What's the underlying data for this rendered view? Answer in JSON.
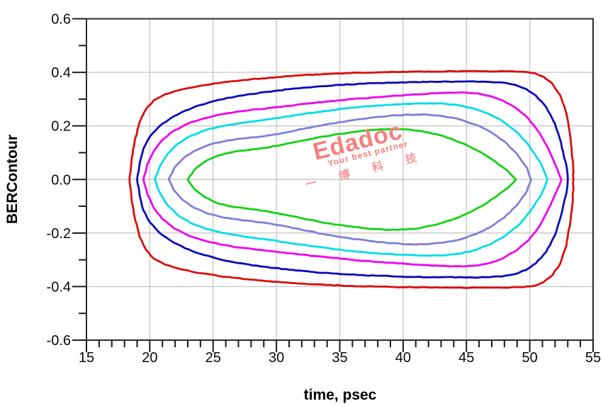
{
  "chart_data": {
    "type": "contour",
    "title": "",
    "xlabel": "time, psec",
    "ylabel": "BERContour",
    "xlim": [
      15,
      55
    ],
    "ylim": [
      -0.6,
      0.6
    ],
    "x_ticks": [
      15,
      20,
      25,
      30,
      35,
      40,
      45,
      50,
      55
    ],
    "x_tick_labels": [
      "15",
      "20",
      "25",
      "30",
      "35",
      "40",
      "45",
      "50",
      "55"
    ],
    "x_minor_tick_step": 1,
    "y_ticks": [
      0.6,
      0.4,
      0.2,
      0.0,
      -0.2,
      -0.4,
      -0.6
    ],
    "y_tick_labels": [
      "0.6",
      "0.4",
      "0.2",
      "0.0",
      "-0.2",
      "-0.4",
      "-0.6"
    ],
    "y_minor_ticks": [
      0.5,
      0.3,
      0.1,
      -0.1,
      -0.3,
      -0.5
    ],
    "grid": "major gridlines, light gray, full box border",
    "legend_position": "none",
    "series_note": "Nested BER eye-contour loops, symmetric about y=0; upper_points give the top half (time psec, BERContour); lower half mirrors with negated y",
    "series": [
      {
        "name": "contour-1-outermost",
        "color": "#dc0d0d",
        "symmetric_about_y0": true,
        "upper_points": [
          [
            18.4,
            0
          ],
          [
            18.55,
            0.07
          ],
          [
            18.8,
            0.14
          ],
          [
            19.2,
            0.215
          ],
          [
            19.7,
            0.262
          ],
          [
            20.3,
            0.295
          ],
          [
            21.2,
            0.318
          ],
          [
            22.5,
            0.336
          ],
          [
            24,
            0.35
          ],
          [
            26,
            0.364
          ],
          [
            28,
            0.374
          ],
          [
            30,
            0.382
          ],
          [
            32,
            0.389
          ],
          [
            34,
            0.394
          ],
          [
            36,
            0.398
          ],
          [
            38,
            0.4
          ],
          [
            40,
            0.402
          ],
          [
            42,
            0.403
          ],
          [
            44,
            0.404
          ],
          [
            46,
            0.404
          ],
          [
            48,
            0.404
          ],
          [
            49.5,
            0.402
          ],
          [
            50.4,
            0.397
          ],
          [
            51.1,
            0.383
          ],
          [
            51.8,
            0.357
          ],
          [
            52.4,
            0.315
          ],
          [
            52.9,
            0.245
          ],
          [
            53.2,
            0.16
          ],
          [
            53.4,
            0.07
          ],
          [
            53.45,
            0
          ]
        ]
      },
      {
        "name": "contour-2",
        "color": "#0a0abb",
        "symmetric_about_y0": true,
        "upper_points": [
          [
            19.0,
            0
          ],
          [
            19.2,
            0.06
          ],
          [
            19.5,
            0.115
          ],
          [
            20.0,
            0.16
          ],
          [
            20.7,
            0.196
          ],
          [
            21.6,
            0.227
          ],
          [
            22.8,
            0.257
          ],
          [
            24,
            0.278
          ],
          [
            25.5,
            0.298
          ],
          [
            27,
            0.312
          ],
          [
            29,
            0.326
          ],
          [
            31,
            0.337
          ],
          [
            33,
            0.346
          ],
          [
            35,
            0.353
          ],
          [
            37,
            0.358
          ],
          [
            39,
            0.361
          ],
          [
            41,
            0.364
          ],
          [
            43,
            0.365
          ],
          [
            45,
            0.366
          ],
          [
            46.5,
            0.365
          ],
          [
            47.8,
            0.362
          ],
          [
            48.8,
            0.354
          ],
          [
            49.7,
            0.338
          ],
          [
            50.5,
            0.312
          ],
          [
            51.3,
            0.27
          ],
          [
            52.0,
            0.207
          ],
          [
            52.5,
            0.13
          ],
          [
            52.9,
            0.05
          ],
          [
            53.0,
            0
          ]
        ]
      },
      {
        "name": "contour-3",
        "color": "#ee00ee",
        "symmetric_about_y0": true,
        "upper_points": [
          [
            19.5,
            0
          ],
          [
            19.8,
            0.055
          ],
          [
            20.3,
            0.105
          ],
          [
            21.0,
            0.148
          ],
          [
            21.9,
            0.182
          ],
          [
            23,
            0.208
          ],
          [
            24.2,
            0.227
          ],
          [
            25.5,
            0.242
          ],
          [
            27,
            0.254
          ],
          [
            28.5,
            0.262
          ],
          [
            30,
            0.27
          ],
          [
            31.5,
            0.278
          ],
          [
            33,
            0.286
          ],
          [
            34.5,
            0.293
          ],
          [
            36,
            0.3
          ],
          [
            37.5,
            0.306
          ],
          [
            39,
            0.311
          ],
          [
            40.5,
            0.316
          ],
          [
            42,
            0.32
          ],
          [
            43.5,
            0.324
          ],
          [
            44.8,
            0.325
          ],
          [
            45.9,
            0.321
          ],
          [
            46.9,
            0.311
          ],
          [
            47.9,
            0.294
          ],
          [
            48.9,
            0.267
          ],
          [
            49.9,
            0.227
          ],
          [
            50.8,
            0.172
          ],
          [
            51.6,
            0.1
          ],
          [
            52.2,
            0.035
          ],
          [
            52.5,
            0
          ]
        ]
      },
      {
        "name": "contour-4",
        "color": "#00dde4",
        "symmetric_about_y0": true,
        "upper_points": [
          [
            20.4,
            0
          ],
          [
            20.8,
            0.05
          ],
          [
            21.4,
            0.095
          ],
          [
            22.2,
            0.133
          ],
          [
            23.2,
            0.162
          ],
          [
            24.4,
            0.184
          ],
          [
            25.8,
            0.2
          ],
          [
            27.3,
            0.212
          ],
          [
            29,
            0.222
          ],
          [
            30.8,
            0.235
          ],
          [
            32.6,
            0.248
          ],
          [
            34.4,
            0.259
          ],
          [
            36.2,
            0.269
          ],
          [
            38,
            0.276
          ],
          [
            39.8,
            0.281
          ],
          [
            41.5,
            0.284
          ],
          [
            43,
            0.284
          ],
          [
            44.3,
            0.278
          ],
          [
            45.5,
            0.266
          ],
          [
            46.7,
            0.246
          ],
          [
            47.9,
            0.216
          ],
          [
            49,
            0.176
          ],
          [
            50,
            0.122
          ],
          [
            50.9,
            0.058
          ],
          [
            51.4,
            0
          ]
        ]
      },
      {
        "name": "contour-5",
        "color": "#8080d6",
        "symmetric_about_y0": true,
        "upper_points": [
          [
            21.5,
            0
          ],
          [
            21.9,
            0.04
          ],
          [
            22.6,
            0.077
          ],
          [
            23.5,
            0.106
          ],
          [
            24.6,
            0.128
          ],
          [
            25.9,
            0.143
          ],
          [
            27.4,
            0.153
          ],
          [
            29,
            0.161
          ],
          [
            30.7,
            0.175
          ],
          [
            32.4,
            0.192
          ],
          [
            34.1,
            0.207
          ],
          [
            35.8,
            0.22
          ],
          [
            37.4,
            0.23
          ],
          [
            39,
            0.238
          ],
          [
            40.5,
            0.242
          ],
          [
            41.9,
            0.242
          ],
          [
            43.2,
            0.236
          ],
          [
            44.5,
            0.224
          ],
          [
            45.7,
            0.205
          ],
          [
            46.9,
            0.178
          ],
          [
            48,
            0.142
          ],
          [
            49,
            0.095
          ],
          [
            49.8,
            0.042
          ],
          [
            50.1,
            0
          ]
        ]
      },
      {
        "name": "contour-6-innermost",
        "color": "#12d212",
        "symmetric_about_y0": true,
        "upper_points": [
          [
            23.0,
            0
          ],
          [
            23.5,
            0.035
          ],
          [
            24.3,
            0.065
          ],
          [
            25.3,
            0.088
          ],
          [
            26.5,
            0.102
          ],
          [
            27.8,
            0.11
          ],
          [
            29.2,
            0.118
          ],
          [
            30.6,
            0.131
          ],
          [
            32,
            0.145
          ],
          [
            33.4,
            0.158
          ],
          [
            34.8,
            0.169
          ],
          [
            36.2,
            0.178
          ],
          [
            37.6,
            0.185
          ],
          [
            38.9,
            0.188
          ],
          [
            40.2,
            0.187
          ],
          [
            41.4,
            0.181
          ],
          [
            42.6,
            0.169
          ],
          [
            43.8,
            0.152
          ],
          [
            45,
            0.129
          ],
          [
            46.2,
            0.1
          ],
          [
            47.3,
            0.066
          ],
          [
            48.3,
            0.03
          ],
          [
            48.9,
            0
          ]
        ]
      }
    ],
    "colors": {
      "grid": "#c8c8c8",
      "border": "#2b2b2b",
      "tick": "#1a1a1a",
      "text": "#0a0a0a"
    }
  },
  "watermark": {
    "brand": "Edadoc",
    "tagline": "Your best partner",
    "chinese": "一 博 科 技",
    "brand_color": "#f4807f",
    "chinese_color": "#f79a99"
  }
}
